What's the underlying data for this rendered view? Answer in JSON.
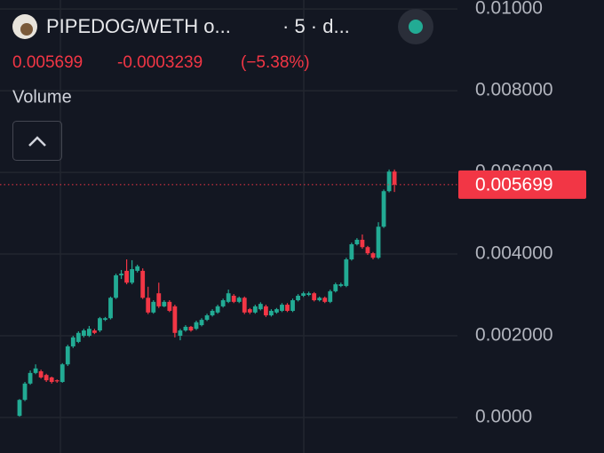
{
  "chart_data": {
    "type": "candlestick",
    "title": "PIPEDOG/WETH o...",
    "subtitle": "· 5 · d...",
    "last_price": 0.005699,
    "change": -0.0003239,
    "change_percent": "(−5.38%)",
    "indicator": "Volume",
    "up_color": "#22ab94",
    "down_color": "#f23645",
    "grid": true,
    "ylim": [
      -0.00087,
      0.01022
    ],
    "yticks": [
      {
        "value": 0,
        "label": "0.0000"
      },
      {
        "value": 0.002,
        "label": "0.002000"
      },
      {
        "value": 0.004,
        "label": "0.004000"
      },
      {
        "value": 0.006,
        "label": "0.006000"
      },
      {
        "value": 0.008,
        "label": "0.008000"
      },
      {
        "value": 0.01,
        "label": "0.01000"
      }
    ],
    "open": [
      4e-05,
      0.00043,
      0.00083,
      0.00109,
      0.00113,
      0.00104,
      0.00098,
      0.00091,
      0.00087,
      0.0013,
      0.00174,
      0.00185,
      0.002,
      0.002,
      0.00213,
      0.00213,
      0.00239,
      0.00243,
      0.00293,
      0.00348,
      0.00359,
      0.0033,
      0.00359,
      0.00359,
      0.00293,
      0.00257,
      0.00304,
      0.00272,
      0.00283,
      0.00272,
      0.002,
      0.00213,
      0.00222,
      0.00217,
      0.00226,
      0.00239,
      0.0025,
      0.00257,
      0.00272,
      0.00283,
      0.00298,
      0.00283,
      0.00293,
      0.00265,
      0.00257,
      0.00265,
      0.00272,
      0.0025,
      0.00257,
      0.00261,
      0.00276,
      0.00261,
      0.00287,
      0.00298,
      0.003,
      0.00304,
      0.00287,
      0.00293,
      0.00283,
      0.00309,
      0.00322,
      0.00322,
      0.00387,
      0.00424,
      0.00435,
      0.00417,
      0.00402,
      0.00391,
      0.00467,
      0.00554,
      0.00602
    ],
    "high": [
      0.00045,
      0.00087,
      0.00115,
      0.0013,
      0.00117,
      0.00107,
      0.001,
      0.00093,
      0.00133,
      0.00178,
      0.002,
      0.00211,
      0.00217,
      0.00224,
      0.00217,
      0.00246,
      0.00246,
      0.00296,
      0.00352,
      0.00361,
      0.00387,
      0.00385,
      0.00374,
      0.00365,
      0.0032,
      0.00287,
      0.0033,
      0.00287,
      0.00287,
      0.00276,
      0.00217,
      0.00226,
      0.00224,
      0.00237,
      0.00243,
      0.00254,
      0.00265,
      0.00276,
      0.00291,
      0.00313,
      0.00302,
      0.00296,
      0.00296,
      0.00268,
      0.00276,
      0.00282,
      0.00276,
      0.00265,
      0.00268,
      0.0028,
      0.0028,
      0.00291,
      0.00302,
      0.00308,
      0.00308,
      0.00307,
      0.00296,
      0.00296,
      0.00313,
      0.0033,
      0.0033,
      0.00391,
      0.00428,
      0.00439,
      0.00448,
      0.0042,
      0.00405,
      0.00478,
      0.00558,
      0.00607,
      0.00607
    ],
    "low": [
      2e-05,
      0.0004,
      0.0008,
      0.00106,
      0.00095,
      0.00087,
      0.00083,
      0.00085,
      0.00085,
      0.00126,
      0.0017,
      0.00182,
      0.00196,
      0.00197,
      0.00204,
      0.00209,
      0.00236,
      0.0024,
      0.0029,
      0.00339,
      0.00326,
      0.00326,
      0.00355,
      0.0029,
      0.00253,
      0.00254,
      0.00268,
      0.0027,
      0.00258,
      0.00196,
      0.00189,
      0.0021,
      0.0021,
      0.00214,
      0.00223,
      0.00236,
      0.00247,
      0.00254,
      0.00269,
      0.0028,
      0.0028,
      0.0028,
      0.00253,
      0.00253,
      0.00254,
      0.00262,
      0.00246,
      0.00247,
      0.00254,
      0.00258,
      0.00258,
      0.00258,
      0.00284,
      0.00295,
      0.00297,
      0.00284,
      0.00284,
      0.0028,
      0.0028,
      0.00306,
      0.00319,
      0.00319,
      0.00384,
      0.00421,
      0.00413,
      0.00398,
      0.00387,
      0.00388,
      0.00464,
      0.00551,
      0.00552
    ],
    "close": [
      0.00043,
      0.00083,
      0.00109,
      0.0012,
      0.00098,
      0.00091,
      0.00087,
      0.00089,
      0.0013,
      0.00174,
      0.00196,
      0.00207,
      0.00213,
      0.00217,
      0.00207,
      0.00243,
      0.00243,
      0.00293,
      0.00348,
      0.00352,
      0.0033,
      0.00363,
      0.0037,
      0.00293,
      0.00257,
      0.00283,
      0.00272,
      0.00283,
      0.00261,
      0.00207,
      0.00213,
      0.00222,
      0.00213,
      0.00233,
      0.00239,
      0.0025,
      0.00261,
      0.00272,
      0.00287,
      0.00304,
      0.00283,
      0.00293,
      0.00257,
      0.00257,
      0.00272,
      0.00278,
      0.0025,
      0.00261,
      0.00265,
      0.00276,
      0.00261,
      0.00287,
      0.00298,
      0.00304,
      0.00304,
      0.00287,
      0.00293,
      0.00283,
      0.00309,
      0.00326,
      0.00326,
      0.00387,
      0.00424,
      0.00435,
      0.00417,
      0.00402,
      0.00391,
      0.00467,
      0.00554,
      0.00602,
      0.005699
    ]
  }
}
